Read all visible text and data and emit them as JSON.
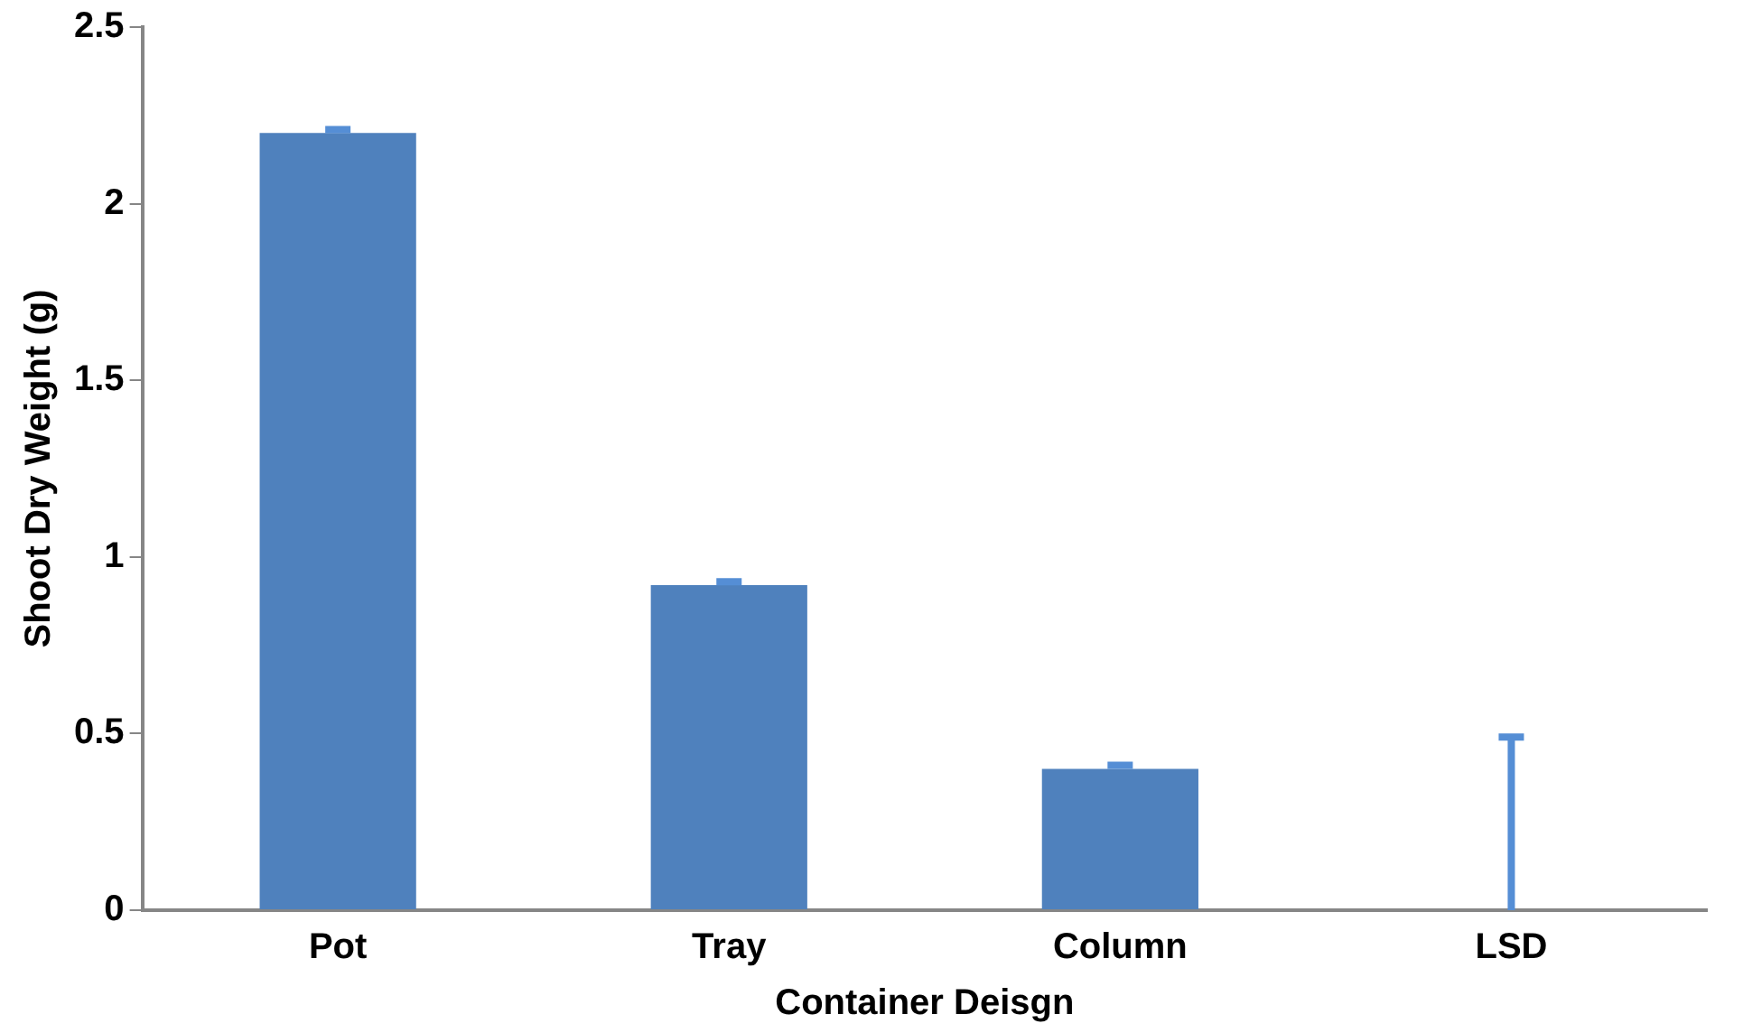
{
  "chart_data": {
    "type": "bar",
    "xlabel": "Container Deisgn",
    "ylabel": "Shoot Dry Weight (g)",
    "categories": [
      "Pot",
      "Tray",
      "Column",
      "LSD"
    ],
    "values": [
      2.2,
      0.92,
      0.4,
      0
    ],
    "errors": [
      [
        2.2,
        2.21
      ],
      [
        0.92,
        0.93
      ],
      [
        0.4,
        0.41
      ],
      [
        0,
        0.49
      ]
    ],
    "color": "#4f81bd",
    "ylim": [
      0,
      2.5
    ],
    "yticks": [
      0,
      0.5,
      1,
      1.5,
      2,
      2.5
    ],
    "grid": false,
    "legend": false
  }
}
